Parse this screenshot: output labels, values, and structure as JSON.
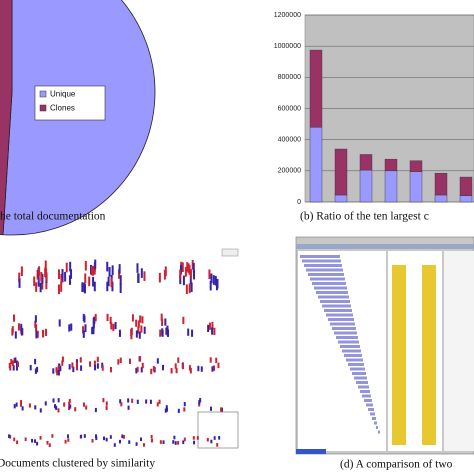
{
  "chart_data": [
    {
      "type": "pie",
      "caption": "he total documentation",
      "categories": [
        "Unique",
        "Clones"
      ],
      "values": [
        51,
        49
      ],
      "colors": [
        "#9999ff",
        "#993366"
      ]
    },
    {
      "type": "bar",
      "caption": "(b) Ratio of the ten largest c",
      "stacked": true,
      "categories": [
        null,
        null,
        null,
        null,
        null,
        null,
        null
      ],
      "series": [
        {
          "name": "Unique",
          "color": "#9999ff",
          "values": [
            480000,
            45000,
            205000,
            200000,
            195000,
            45000,
            40000
          ]
        },
        {
          "name": "Clones",
          "color": "#993366",
          "values": [
            495000,
            295000,
            100000,
            75000,
            70000,
            140000,
            120000
          ]
        }
      ],
      "ylim": [
        0,
        1200000
      ],
      "yticks": [
        0,
        200000,
        400000,
        600000,
        800000,
        1000000,
        1200000
      ],
      "grid": true
    }
  ],
  "figures": [
    {
      "caption": "Documents clustered by similarity"
    },
    {
      "caption": "(d) A comparison of two"
    }
  ]
}
